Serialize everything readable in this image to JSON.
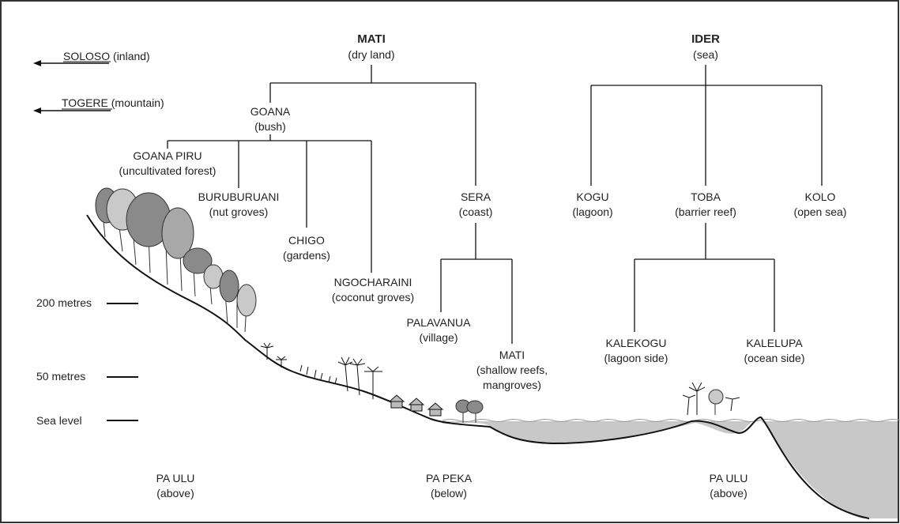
{
  "terms": {
    "mati": {
      "name": "MATI",
      "gloss": "(dry land)"
    },
    "ider": {
      "name": "IDER",
      "gloss": "(sea)"
    },
    "goana": {
      "name": "GOANA",
      "gloss": "(bush)"
    },
    "goana_piru": {
      "name": "GOANA PIRU",
      "gloss": "(uncultivated forest)"
    },
    "buruburuani": {
      "name": "BURUBURUANI",
      "gloss": "(nut groves)"
    },
    "chigo": {
      "name": "CHIGO",
      "gloss": "(gardens)"
    },
    "ngocharaini": {
      "name": "NGOCHARAINI",
      "gloss": "(coconut groves)"
    },
    "sera": {
      "name": "SERA",
      "gloss": "(coast)"
    },
    "palavanua": {
      "name": "PALAVANUA",
      "gloss": "(village)"
    },
    "mati_reefs": {
      "name": "MATI",
      "gloss1": "(shallow reefs,",
      "gloss2": "mangroves)"
    },
    "kogu": {
      "name": "KOGU",
      "gloss": "(lagoon)"
    },
    "toba": {
      "name": "TOBA",
      "gloss": "(barrier reef)"
    },
    "kolo": {
      "name": "KOLO",
      "gloss": "(open sea)"
    },
    "kalekogu": {
      "name": "KALEKOGU",
      "gloss": "(lagoon side)"
    },
    "kalelupa": {
      "name": "KALELUPA",
      "gloss": "(ocean side)"
    }
  },
  "directions": {
    "soloso": {
      "name": "SOLOSO",
      "gloss": "(inland)"
    },
    "togere": {
      "name": "TOGERE",
      "gloss": "(mountain)"
    }
  },
  "elevations": {
    "m200": "200 metres",
    "m50": "50 metres",
    "sea_level": "Sea level"
  },
  "zones": {
    "left": {
      "name": "PA ULU",
      "gloss": "(above)"
    },
    "middle": {
      "name": "PA PEKA",
      "gloss": "(below)"
    },
    "right": {
      "name": "PA ULU",
      "gloss": "(above)"
    }
  },
  "colors": {
    "sea": "#c8c8c8",
    "tree_dark": "#8a8a8a",
    "tree_mid": "#a8a8a8",
    "tree_light": "#c9c9c9"
  }
}
